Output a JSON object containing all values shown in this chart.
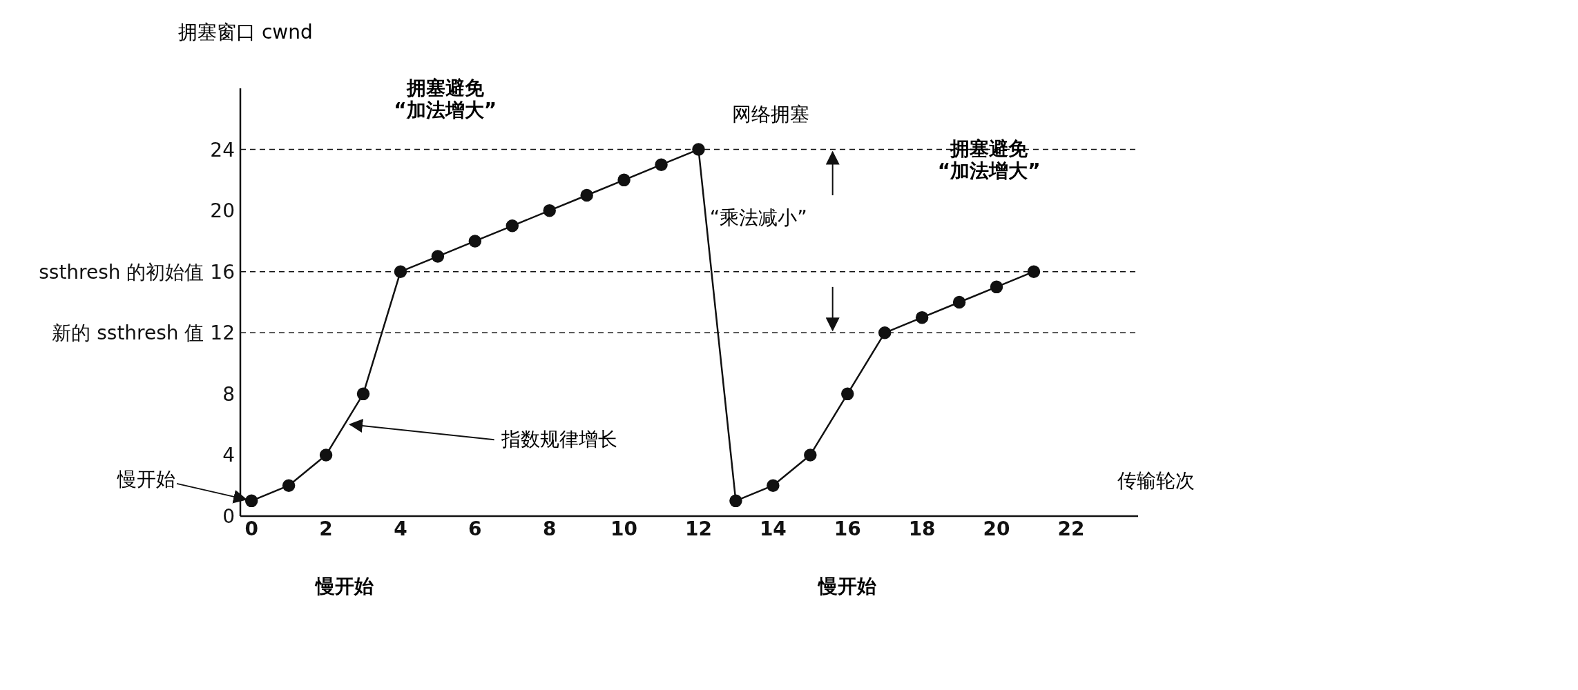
{
  "chart_data": {
    "type": "line",
    "ylabel": "拥塞窗口 cwnd",
    "xlabel": "传输轮次",
    "x": [
      0,
      1,
      2,
      3,
      4,
      5,
      6,
      7,
      8,
      9,
      10,
      11,
      12,
      13,
      14,
      15,
      16,
      17,
      18,
      19,
      20,
      21
    ],
    "series": [
      {
        "color": "#111111",
        "values": [
          1,
          2,
          4,
          8,
          16,
          17,
          18,
          19,
          20,
          21,
          22,
          23,
          24,
          1,
          2,
          4,
          8,
          12,
          13,
          14,
          15,
          16
        ]
      }
    ],
    "xlim": [
      -0.3,
      23.8
    ],
    "xticks": [
      0,
      2,
      4,
      6,
      8,
      10,
      12,
      14,
      16,
      18,
      20,
      22
    ],
    "ylim": [
      0,
      28
    ],
    "yticks": [
      0,
      4,
      8,
      {
        "value": 12,
        "label": "新的 ssthresh 值 12"
      },
      {
        "value": 16,
        "label": "ssthresh 的初始值 16"
      },
      20,
      24
    ],
    "marker": "circle",
    "line_style": "solid",
    "grid": false,
    "ref_lines": [
      {
        "axis": "y",
        "value": 24,
        "line_style": "dashed",
        "color": "#111111"
      },
      {
        "axis": "y",
        "value": 16,
        "line_style": "dashed",
        "color": "#111111"
      },
      {
        "axis": "y",
        "value": 12,
        "line_style": "dashed",
        "color": "#111111"
      }
    ],
    "annotations": [
      {
        "text": "慢开始",
        "x": 0,
        "y": 1
      },
      {
        "text": "指数规律增长",
        "x": 2.5,
        "y": 6
      },
      "网络拥塞",
      "拥塞避免\n“加法增大”",
      "拥塞避免\n“加法增大”",
      "“乘法减小”",
      "慢开始",
      "慢开始"
    ]
  }
}
